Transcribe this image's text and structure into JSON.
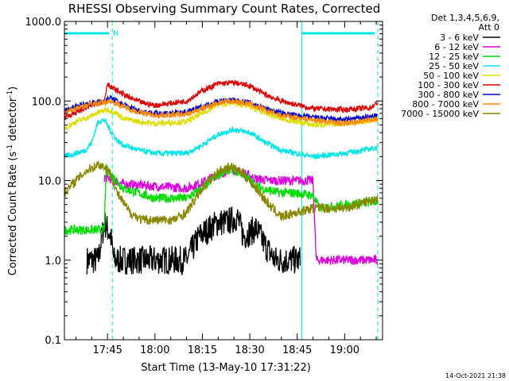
{
  "chart_data": {
    "type": "line",
    "title": "RHESSI Observing Summary Count Rates, Corrected",
    "xlabel": "Start Time (13-May-10 17:31:22)",
    "ylabel_main": "Corrected Count Rate (s",
    "ylabel_sup1": "-1",
    "ylabel_mid": " detector",
    "ylabel_sup2": "-1",
    "ylabel_end": ")",
    "yscale": "log",
    "ylim": [
      0.1,
      1000.0
    ],
    "xlim": [
      "17:31:22",
      "19:12:00"
    ],
    "xlim_min": [
      1051.37,
      1152
    ],
    "yticks": [
      {
        "value": 1000,
        "label": "1000.0"
      },
      {
        "value": 100,
        "label": "100.0"
      },
      {
        "value": 10,
        "label": "10.0"
      },
      {
        "value": 1,
        "label": "1.0"
      },
      {
        "value": 0.1,
        "label": "0.1"
      }
    ],
    "xticks": [
      {
        "value": 1065,
        "label": "17:45"
      },
      {
        "value": 1080,
        "label": "18:00"
      },
      {
        "value": 1095,
        "label": "18:15"
      },
      {
        "value": 1110,
        "label": "18:30"
      },
      {
        "value": 1125,
        "label": "18:45"
      },
      {
        "value": 1140,
        "label": "19:00"
      }
    ],
    "legend_header_1": "Det 1,3,4,5,6,9,",
    "legend_header_2": "Att 0",
    "legend_placement": "right",
    "annotation_night": "N",
    "timestamp": "14-Oct-2021 21:38",
    "night_bars": [
      {
        "start": 1051.37,
        "end": 1066.5
      },
      {
        "start": 1126.5,
        "end": 1150.5
      }
    ],
    "vlines": [
      1051.37,
      1066.5,
      1126.5,
      1150.5
    ],
    "series": [
      {
        "name": "3 - 6 keV",
        "color": "#000000",
        "x": [
          1058.5,
          1062,
          1064,
          1066,
          1067,
          1090,
          1094,
          1100,
          1103,
          1106,
          1108,
          1112,
          1115,
          1118,
          1120,
          1126
        ],
        "y": [
          1.0,
          1.0,
          3.0,
          2.0,
          1.0,
          1.0,
          2.0,
          3.0,
          3.0,
          3.5,
          2.0,
          2.5,
          1.5,
          1.0,
          1.0,
          1.0
        ]
      },
      {
        "name": "6 - 12 keV",
        "color": "#dd00dd",
        "x": [
          1064,
          1066,
          1070,
          1080,
          1090,
          1095,
          1100,
          1104,
          1108,
          1112,
          1116,
          1120,
          1124,
          1130,
          1131,
          1150.5
        ],
        "y": [
          11.0,
          10.5,
          9.0,
          8.5,
          8.0,
          9.5,
          12.0,
          14.0,
          12.5,
          10.5,
          10.0,
          10.0,
          10.0,
          10.0,
          1.0,
          1.0
        ]
      },
      {
        "name": "12 - 25 keV",
        "color": "#00dd00",
        "x": [
          1051.37,
          1058,
          1060,
          1064,
          1064.5,
          1066,
          1070,
          1080,
          1090,
          1095,
          1100,
          1104,
          1108,
          1112,
          1116,
          1120,
          1124,
          1130,
          1132,
          1150.5
        ],
        "y": [
          2.4,
          2.4,
          2.4,
          2.4,
          14.0,
          12.0,
          8.0,
          6.0,
          6.0,
          8.0,
          12.0,
          14.0,
          12.0,
          8.5,
          7.5,
          7.0,
          7.0,
          6.5,
          4.5,
          5.5
        ]
      },
      {
        "name": "25 - 50 keV",
        "color": "#00e5e5",
        "x": [
          1051.37,
          1055,
          1058,
          1060,
          1062,
          1064,
          1066,
          1068,
          1070,
          1075,
          1080,
          1090,
          1095,
          1100,
          1105,
          1110,
          1115,
          1120,
          1130,
          1140,
          1150.5
        ],
        "y": [
          20.0,
          22.0,
          24.0,
          30.0,
          55.0,
          58.0,
          42.0,
          32.0,
          28.0,
          24.0,
          22.0,
          22.0,
          28.0,
          38.0,
          44.0,
          40.0,
          30.0,
          24.0,
          20.0,
          22.0,
          26.0
        ]
      },
      {
        "name": "50 - 100 keV",
        "color": "#dddd00",
        "x": [
          1051.37,
          1055,
          1060,
          1062,
          1065,
          1068,
          1070,
          1075,
          1080,
          1090,
          1095,
          1100,
          1105,
          1110,
          1115,
          1120,
          1130,
          1140,
          1150.5
        ],
        "y": [
          45.0,
          55.0,
          65.0,
          72.0,
          78.0,
          70.0,
          60.0,
          55.0,
          52.0,
          55.0,
          70.0,
          90.0,
          95.0,
          85.0,
          70.0,
          60.0,
          50.0,
          52.0,
          58.0
        ]
      },
      {
        "name": "100 - 300 keV",
        "color": "#dd0000",
        "x": [
          1051.37,
          1055,
          1060,
          1064,
          1065,
          1066,
          1068,
          1072,
          1076,
          1080,
          1090,
          1095,
          1100,
          1105,
          1110,
          1115,
          1120,
          1130,
          1140,
          1148,
          1150.5
        ],
        "y": [
          62.0,
          72.0,
          88.0,
          100.0,
          170.0,
          150.0,
          135.0,
          110.0,
          95.0,
          88.0,
          100.0,
          135.0,
          165.0,
          170.0,
          155.0,
          120.0,
          100.0,
          80.0,
          78.0,
          82.0,
          95.0
        ]
      },
      {
        "name": "300 - 800 keV",
        "color": "#0000cc",
        "x": [
          1051.37,
          1055,
          1060,
          1064,
          1066,
          1070,
          1075,
          1080,
          1090,
          1095,
          1100,
          1105,
          1110,
          1115,
          1120,
          1130,
          1140,
          1150.5
        ],
        "y": [
          75.0,
          85.0,
          95.0,
          100.0,
          110.0,
          90.0,
          75.0,
          70.0,
          72.0,
          85.0,
          100.0,
          102.0,
          95.0,
          80.0,
          70.0,
          62.0,
          58.0,
          65.0
        ]
      },
      {
        "name": "800 - 7000 keV",
        "color": "#ff8800",
        "x": [
          1051.37,
          1055,
          1060,
          1064,
          1066,
          1070,
          1075,
          1080,
          1090,
          1095,
          1100,
          1105,
          1110,
          1115,
          1120,
          1130,
          1140,
          1150.5
        ],
        "y": [
          70.0,
          82.0,
          92.0,
          96.0,
          100.0,
          85.0,
          72.0,
          66.0,
          68.0,
          80.0,
          96.0,
          100.0,
          92.0,
          76.0,
          66.0,
          58.0,
          52.0,
          60.0
        ]
      },
      {
        "name": "7000 - 15000 keV",
        "color": "#888800",
        "x": [
          1051.37,
          1055,
          1058,
          1062,
          1064,
          1066,
          1068,
          1072,
          1076,
          1080,
          1086,
          1090,
          1095,
          1100,
          1104,
          1108,
          1112,
          1116,
          1120,
          1125,
          1130,
          1140,
          1150.5
        ],
        "y": [
          7.0,
          10.0,
          13.0,
          16.0,
          15.0,
          12.0,
          7.0,
          4.0,
          3.2,
          3.2,
          3.2,
          4.0,
          8.0,
          13.0,
          15.0,
          12.0,
          8.0,
          5.0,
          3.5,
          4.0,
          4.5,
          4.5,
          6.0
        ]
      }
    ]
  }
}
